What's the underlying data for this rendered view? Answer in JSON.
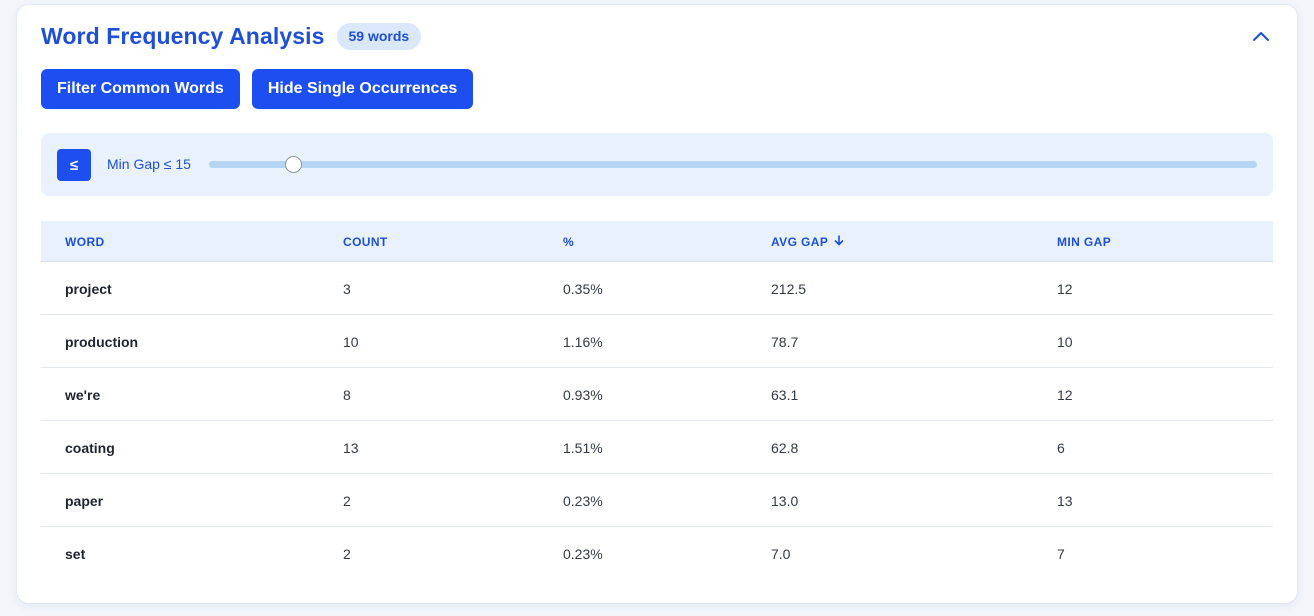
{
  "panel": {
    "title": "Word Frequency Analysis",
    "word_count_badge": "59 words",
    "collapse_icon": "chevron-up-icon"
  },
  "actions": {
    "filter_common": "Filter Common Words",
    "hide_single": "Hide Single Occurrences"
  },
  "gap_filter": {
    "operator_button": "≤",
    "label": "Min Gap ≤ 15",
    "value": 15,
    "slider_fraction": 0.08
  },
  "table": {
    "headers": {
      "word": "WORD",
      "count": "COUNT",
      "percent": "%",
      "avg_gap": "AVG GAP",
      "min_gap": "MIN GAP"
    },
    "sort": {
      "column": "avg_gap",
      "direction": "descending",
      "icon": "arrow-down-icon"
    },
    "rows": [
      {
        "word": "project",
        "count": "3",
        "percent": "0.35%",
        "avg_gap": "212.5",
        "min_gap": "12"
      },
      {
        "word": "production",
        "count": "10",
        "percent": "1.16%",
        "avg_gap": "78.7",
        "min_gap": "10"
      },
      {
        "word": "we're",
        "count": "8",
        "percent": "0.93%",
        "avg_gap": "63.1",
        "min_gap": "12"
      },
      {
        "word": "coating",
        "count": "13",
        "percent": "1.51%",
        "avg_gap": "62.8",
        "min_gap": "6"
      },
      {
        "word": "paper",
        "count": "2",
        "percent": "0.23%",
        "avg_gap": "13.0",
        "min_gap": "13"
      },
      {
        "word": "set",
        "count": "2",
        "percent": "0.23%",
        "avg_gap": "7.0",
        "min_gap": "7"
      }
    ]
  },
  "colors": {
    "accent": "#1d4ff0",
    "title": "#1d4fd8",
    "header_bg": "#e9f1fd",
    "slider_track": "#b6d4f4"
  }
}
